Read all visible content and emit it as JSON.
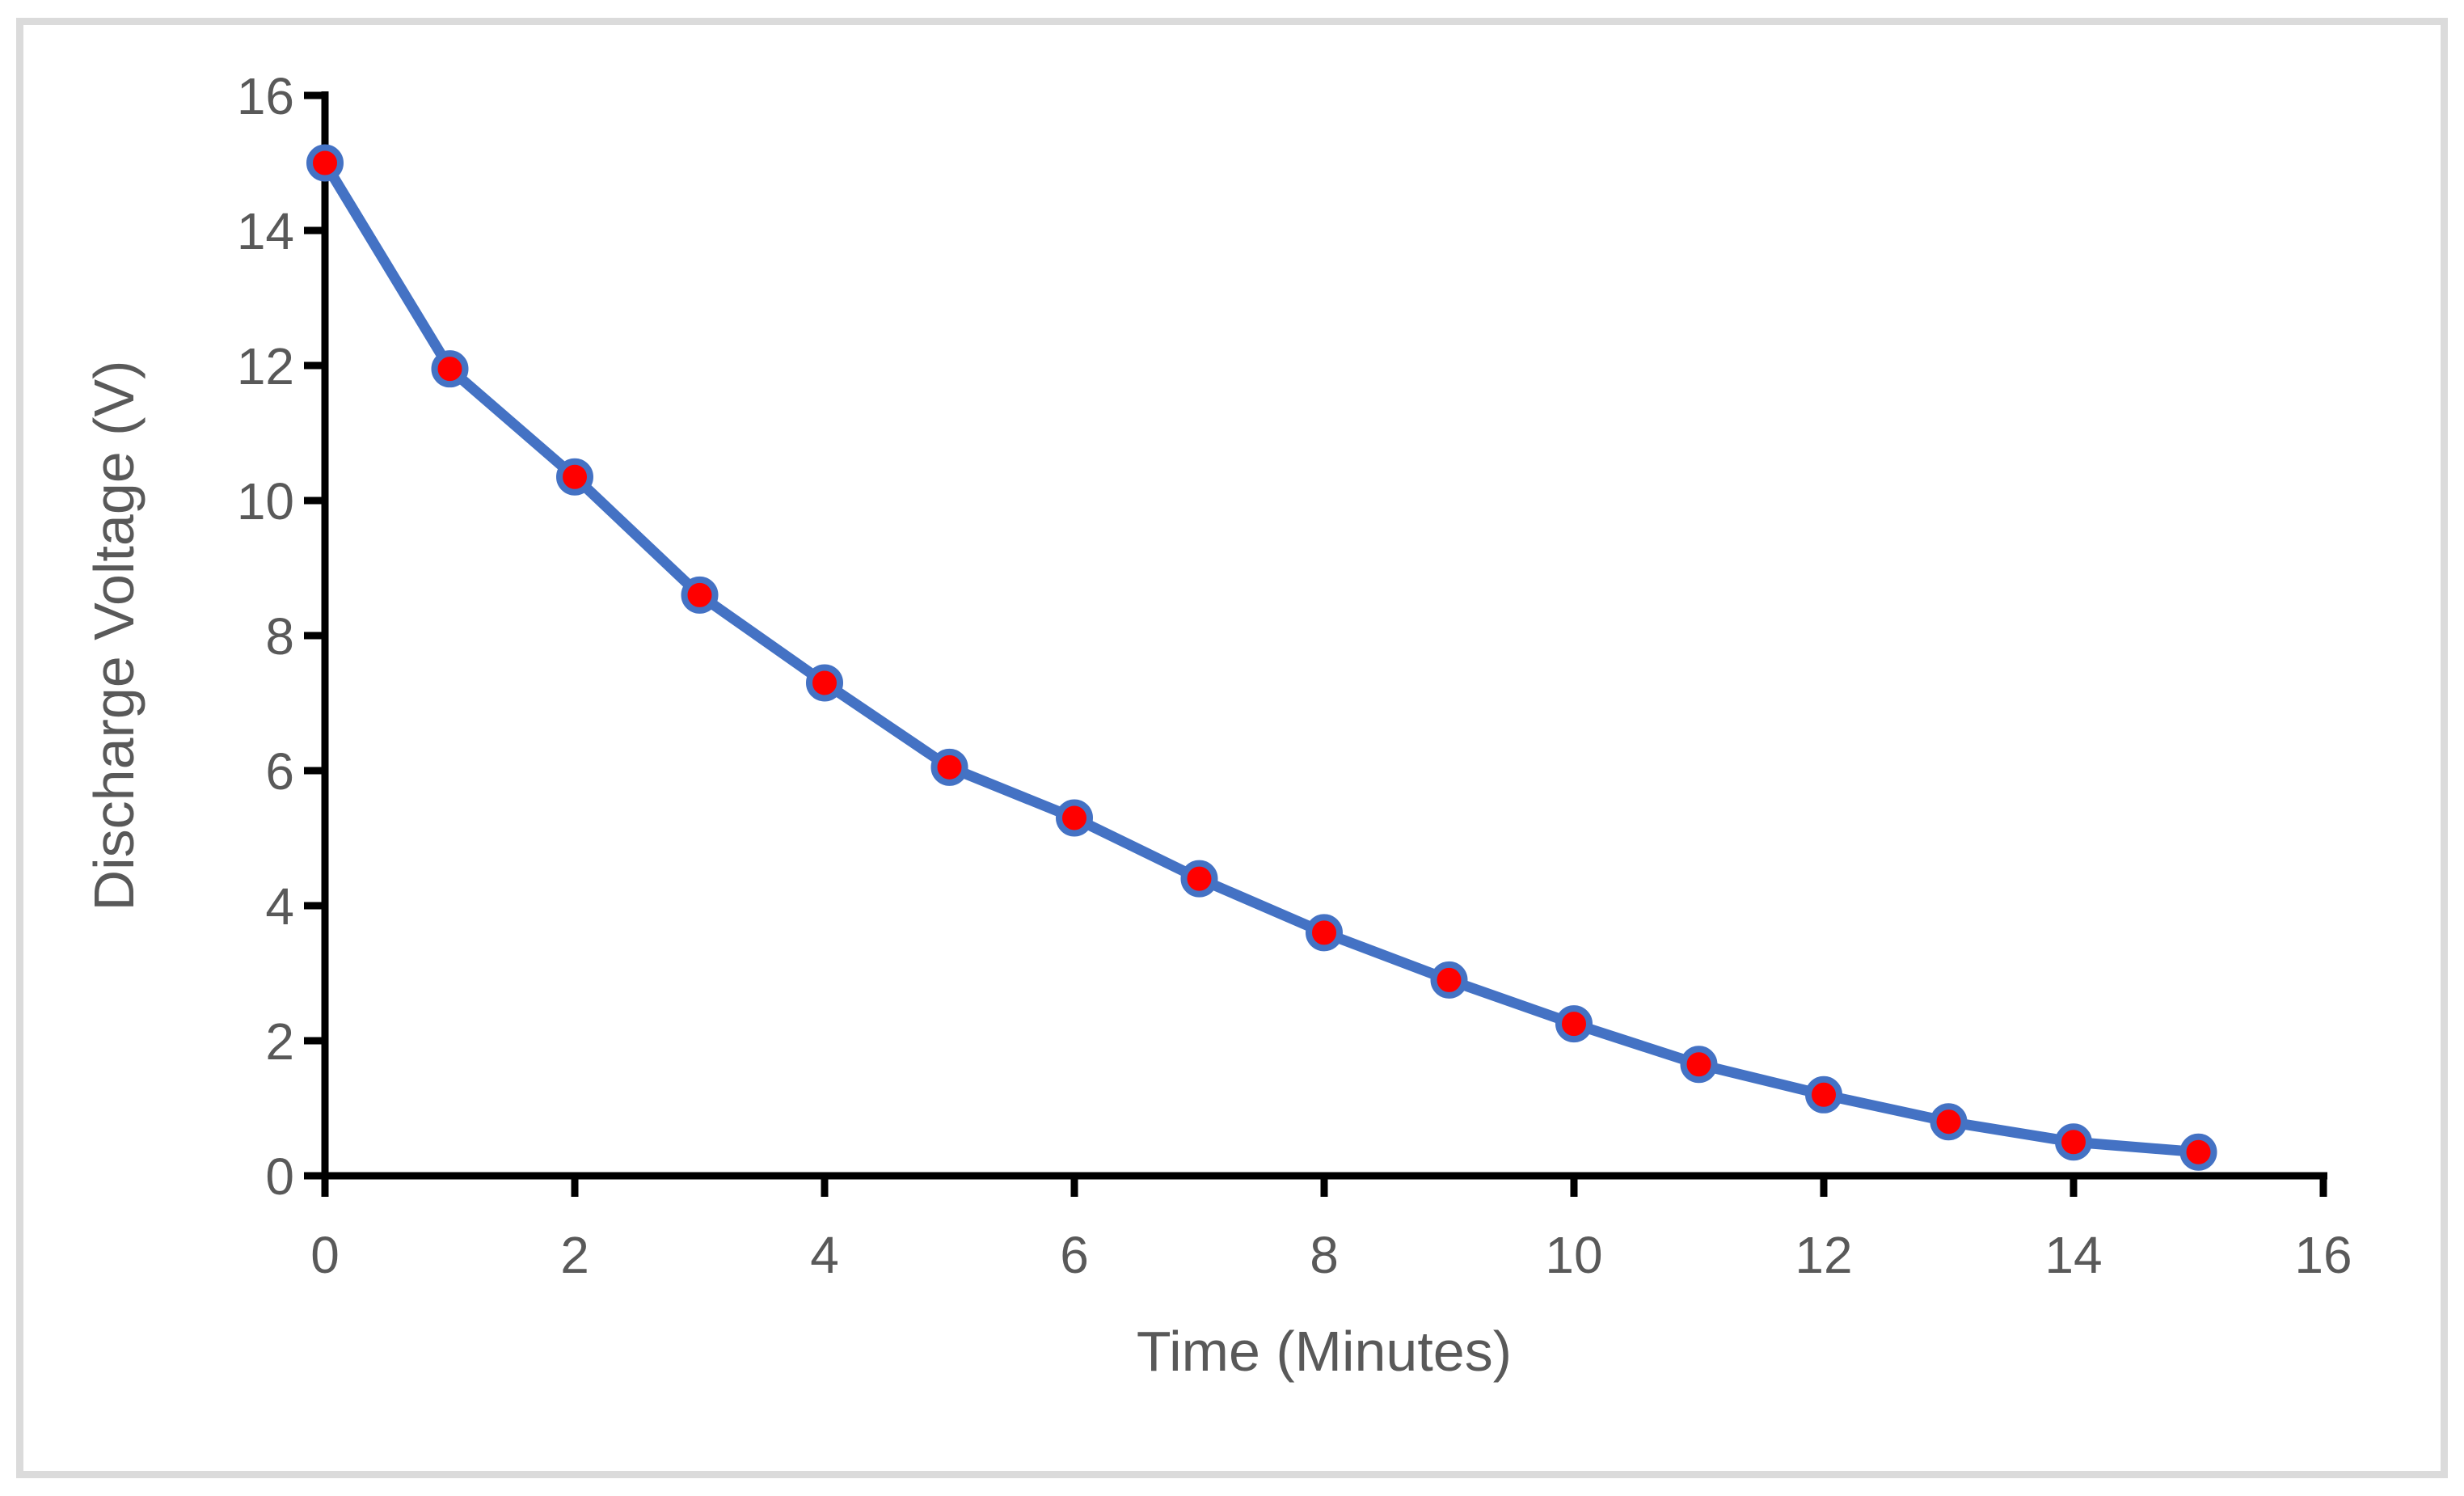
{
  "chart_data": {
    "type": "line",
    "title": "",
    "xlabel": "Time (Minutes)",
    "ylabel": "Discharge Voltage (V)",
    "x": [
      0,
      1,
      2,
      3,
      4,
      5,
      6,
      7,
      8,
      9,
      10,
      11,
      12,
      13,
      14,
      15
    ],
    "values": [
      15.0,
      11.95,
      10.35,
      8.6,
      7.3,
      6.05,
      5.3,
      4.4,
      3.6,
      2.9,
      2.25,
      1.65,
      1.2,
      0.8,
      0.5,
      0.35
    ],
    "x_ticks": [
      "0",
      "2",
      "4",
      "6",
      "8",
      "10",
      "12",
      "14",
      "16"
    ],
    "y_ticks": [
      "0",
      "2",
      "4",
      "6",
      "8",
      "10",
      "12",
      "14",
      "16"
    ],
    "x_tick_values": [
      0,
      2,
      4,
      6,
      8,
      10,
      12,
      14,
      16
    ],
    "y_tick_values": [
      0,
      2,
      4,
      6,
      8,
      10,
      12,
      14,
      16
    ],
    "xlim": [
      0,
      16
    ],
    "ylim": [
      0,
      16
    ],
    "grid": false,
    "legend": false,
    "colors": {
      "line": "#4472C4",
      "marker_fill": "#FF0000",
      "marker_edge": "#4472C4",
      "axis": "#000000",
      "tick_label": "#595959",
      "axis_title": "#595959",
      "frame_border": "#DBDBDB",
      "background": "#FFFFFF"
    }
  }
}
